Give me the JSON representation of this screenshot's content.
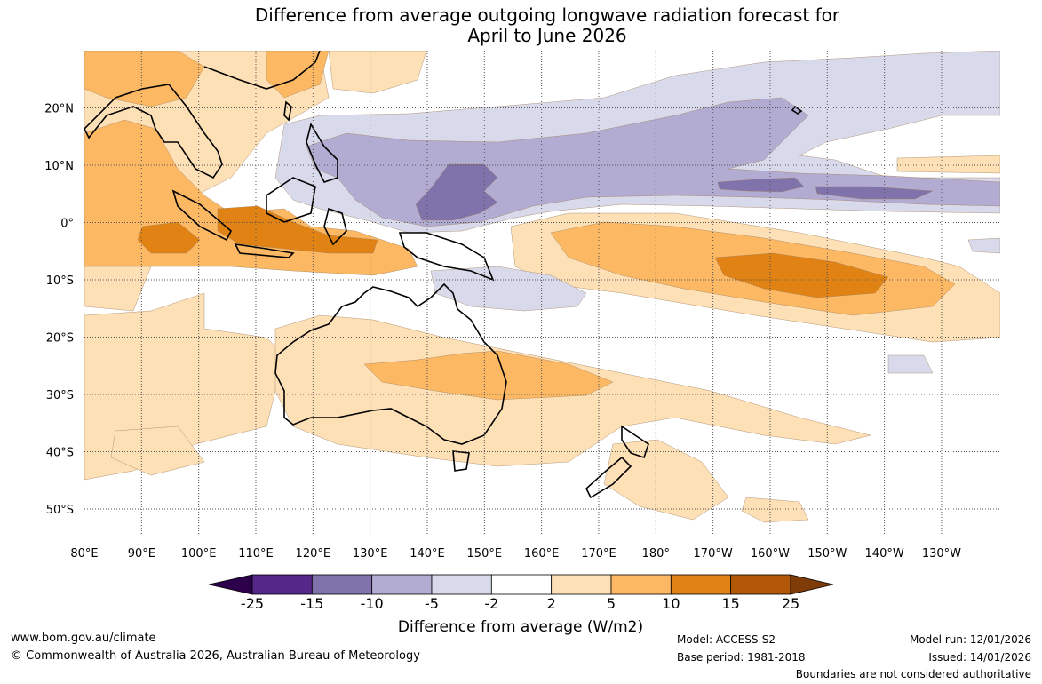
{
  "title": {
    "line1": "Difference from average outgoing longwave radiation forecast for",
    "line2": "April to June 2026"
  },
  "map": {
    "lon_ticks": [
      "80°E",
      "90°E",
      "100°E",
      "110°E",
      "120°E",
      "130°E",
      "140°E",
      "150°E",
      "160°E",
      "170°E",
      "180°",
      "170°W",
      "160°W",
      "150°W",
      "140°W",
      "130°W"
    ],
    "lat_ticks": [
      "20°N",
      "10°N",
      "0°",
      "10°S",
      "20°S",
      "30°S",
      "40°S",
      "50°S"
    ],
    "colors": {
      "pos_2_5": "#fee0b6",
      "pos_5_10": "#fdb863",
      "pos_10_15": "#e08214",
      "neg_2_5": "#d8daeb",
      "neg_5_10": "#b2abd2",
      "neg_10_15": "#8073ac",
      "grid": "#555555",
      "coast": "#000000"
    }
  },
  "colorbar": {
    "labels": [
      "-25",
      "-15",
      "-10",
      "-5",
      "-2",
      "2",
      "5",
      "10",
      "15",
      "25"
    ],
    "colors": [
      "#542788",
      "#8073ac",
      "#b2abd2",
      "#d8daeb",
      "#ffffff",
      "#fee0b6",
      "#fdb863",
      "#e08214",
      "#b35806"
    ],
    "extend_low": "#2d004b",
    "extend_high": "#7f3b08",
    "title": "Difference from average (W/m2)"
  },
  "footer": {
    "website": "www.bom.gov.au/climate",
    "copyright": "© Commonwealth of Australia 2026, Australian Bureau of Meteorology",
    "model": "Model: ACCESS-S2",
    "base_period": "Base period: 1981-2018",
    "model_run": "Model run: 12/01/2026",
    "issued": "Issued: 14/01/2026",
    "disclaimer": "Boundaries are not considered authoritative"
  }
}
